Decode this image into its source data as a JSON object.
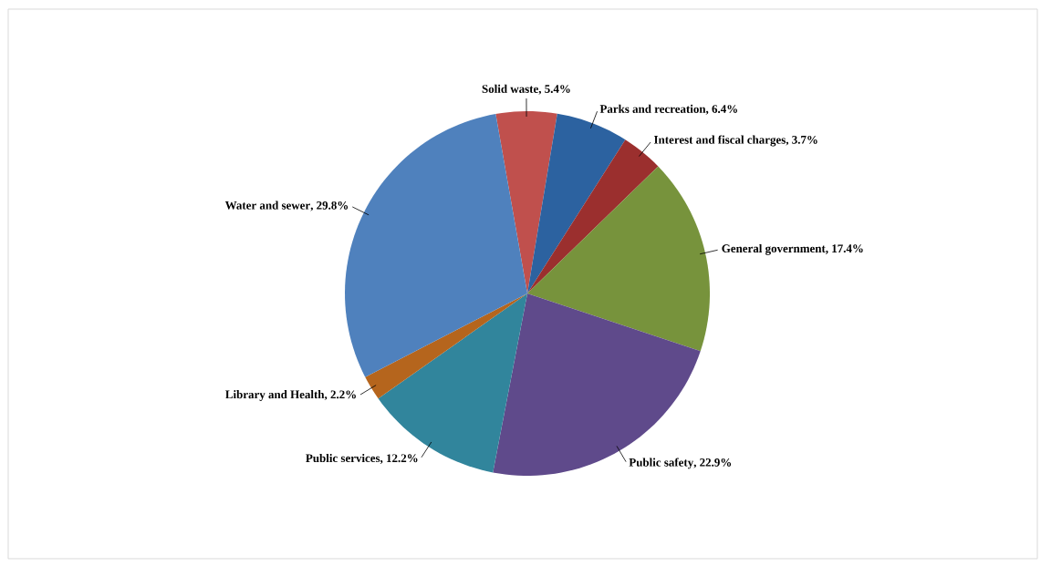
{
  "chart_data": {
    "type": "pie",
    "categories": [
      "Solid waste",
      "Parks and recreation",
      "Interest and fiscal charges",
      "General government",
      "Public safety",
      "Public services",
      "Library and Health",
      "Water and sewer"
    ],
    "values": [
      5.4,
      6.4,
      3.7,
      17.4,
      22.9,
      12.2,
      2.2,
      29.8
    ],
    "value_labels": [
      ", 5.4%",
      ", 6.4%",
      ", 3.7%",
      ", 17.4%",
      ", 22.9%",
      ", 12.2%",
      ", 2.2%",
      ", 29.8%"
    ],
    "colors": [
      "#c0504d",
      "#2c62a0",
      "#9b2f2e",
      "#77933c",
      "#5f4a8b",
      "#31859c",
      "#b5651d",
      "#4f81bd"
    ]
  }
}
